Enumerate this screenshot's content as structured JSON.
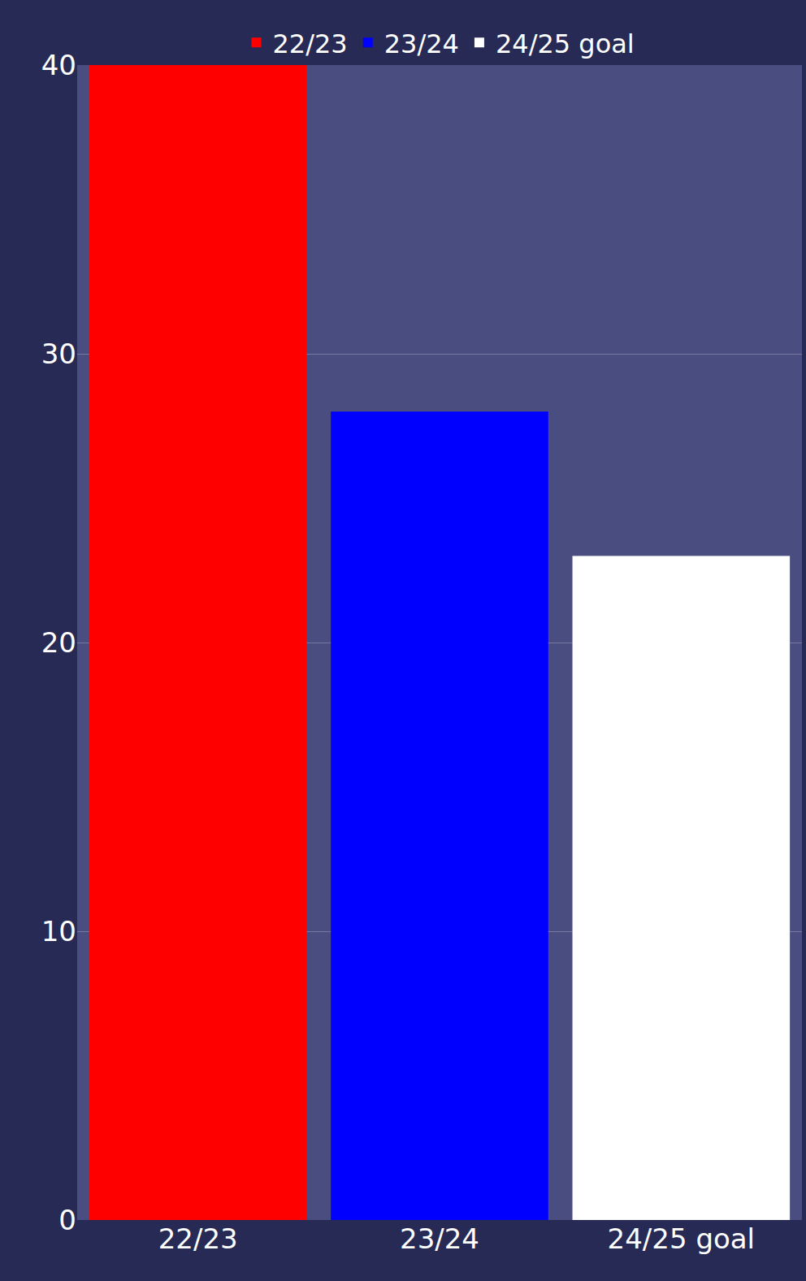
{
  "chart_data": {
    "type": "bar",
    "categories": [
      "22/23",
      "23/24",
      "24/25 goal"
    ],
    "series": [
      {
        "name": "22/23",
        "color": "#ff0000",
        "values": [
          40,
          null,
          null
        ]
      },
      {
        "name": "23/24",
        "color": "#0000ff",
        "values": [
          null,
          28,
          null
        ]
      },
      {
        "name": "24/25 goal",
        "color": "#ffffff",
        "values": [
          null,
          null,
          23
        ]
      }
    ],
    "ylim": [
      0,
      40
    ],
    "yticks": [
      0,
      10,
      20,
      30,
      40
    ],
    "grid": true,
    "legend": "top"
  }
}
